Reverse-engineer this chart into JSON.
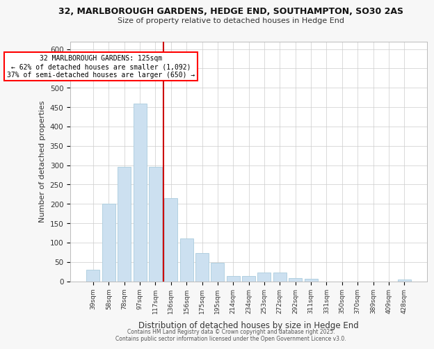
{
  "title_line1": "32, MARLBOROUGH GARDENS, HEDGE END, SOUTHAMPTON, SO30 2AS",
  "title_line2": "Size of property relative to detached houses in Hedge End",
  "xlabel": "Distribution of detached houses by size in Hedge End",
  "ylabel": "Number of detached properties",
  "categories": [
    "39sqm",
    "58sqm",
    "78sqm",
    "97sqm",
    "117sqm",
    "136sqm",
    "156sqm",
    "175sqm",
    "195sqm",
    "214sqm",
    "234sqm",
    "253sqm",
    "272sqm",
    "292sqm",
    "311sqm",
    "331sqm",
    "350sqm",
    "370sqm",
    "389sqm",
    "409sqm",
    "428sqm"
  ],
  "values": [
    30,
    200,
    295,
    460,
    295,
    215,
    110,
    72,
    47,
    13,
    13,
    22,
    22,
    8,
    6,
    0,
    0,
    0,
    0,
    0,
    5
  ],
  "bar_color": "#cce0f0",
  "bar_edge_color": "#aaccdd",
  "vline_color": "#cc0000",
  "vline_x": 4.5,
  "annotation_box_text": "32 MARLBOROUGH GARDENS: 125sqm\n← 62% of detached houses are smaller (1,092)\n37% of semi-detached houses are larger (650) →",
  "ylim": [
    0,
    620
  ],
  "yticks": [
    0,
    50,
    100,
    150,
    200,
    250,
    300,
    350,
    400,
    450,
    500,
    550,
    600
  ],
  "footer_text": "Contains HM Land Registry data © Crown copyright and database right 2025.\nContains public sector information licensed under the Open Government Licence v3.0.",
  "background_color": "#f7f7f7",
  "plot_bg_color": "#ffffff",
  "title_fontsize": 9,
  "subtitle_fontsize": 8
}
